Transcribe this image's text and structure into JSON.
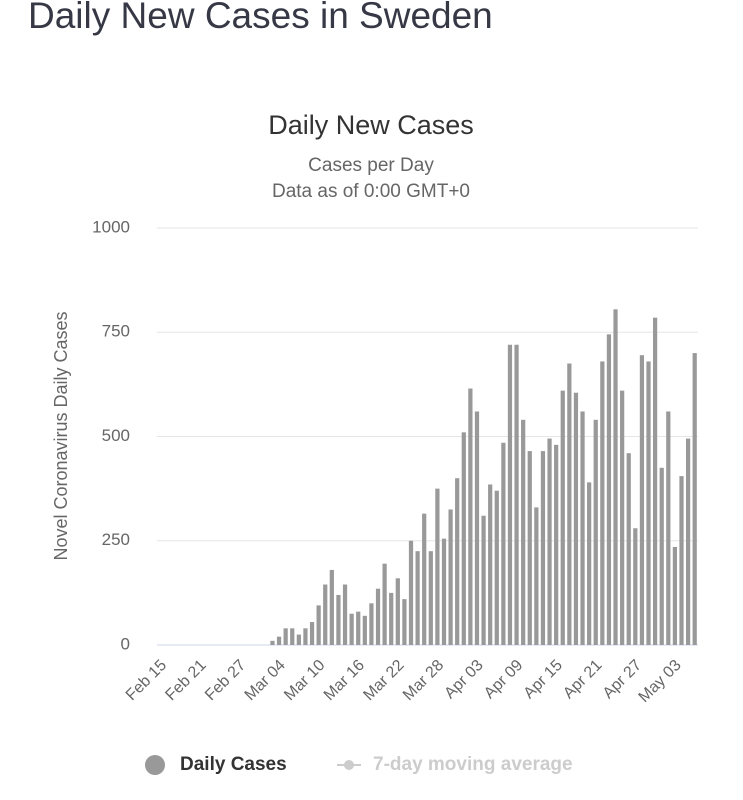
{
  "header": {
    "title": "Daily New Cases in Sweden"
  },
  "chart_data": {
    "type": "bar",
    "title": "Daily New Cases",
    "subtitle": [
      "Cases per Day",
      "Data as of 0:00 GMT+0"
    ],
    "y_label": "Novel Coronavirus Daily Cases",
    "categories": [
      "Feb 15",
      null,
      null,
      null,
      null,
      null,
      "Feb 21",
      null,
      null,
      null,
      null,
      null,
      "Feb 27",
      null,
      null,
      null,
      null,
      null,
      "Mar 04",
      null,
      null,
      null,
      null,
      null,
      "Mar 10",
      null,
      null,
      null,
      null,
      null,
      "Mar 16",
      null,
      null,
      null,
      null,
      null,
      "Mar 22",
      null,
      null,
      null,
      null,
      null,
      "Mar 28",
      null,
      null,
      null,
      null,
      null,
      "Apr 03",
      null,
      null,
      null,
      null,
      null,
      "Apr 09",
      null,
      null,
      null,
      null,
      null,
      "Apr 15",
      null,
      null,
      null,
      null,
      null,
      "Apr 21",
      null,
      null,
      null,
      null,
      null,
      "Apr 27",
      null,
      null,
      null,
      null,
      null,
      "May 03",
      null,
      null,
      null
    ],
    "series": [
      {
        "name": "Daily Cases",
        "color": "#999999",
        "values": [
          0,
          0,
          0,
          0,
          0,
          0,
          0,
          0,
          0,
          0,
          0,
          0,
          0,
          0,
          0,
          0,
          0,
          10,
          20,
          40,
          40,
          25,
          40,
          55,
          95,
          145,
          180,
          120,
          145,
          75,
          80,
          70,
          100,
          135,
          195,
          125,
          160,
          110,
          250,
          225,
          315,
          225,
          375,
          255,
          325,
          400,
          510,
          615,
          560,
          310,
          385,
          370,
          485,
          720,
          720,
          540,
          465,
          330,
          465,
          495,
          480,
          610,
          675,
          605,
          560,
          390,
          540,
          680,
          745,
          805,
          610,
          460,
          280,
          695,
          680,
          785,
          425,
          560,
          235,
          405,
          495,
          700
        ]
      },
      {
        "name": "7-day moving average",
        "color": "#cccccc",
        "visible": false
      }
    ],
    "ylim": [
      0,
      1000
    ],
    "yticks": [
      0,
      250,
      500,
      750,
      1000
    ],
    "grid": true
  }
}
